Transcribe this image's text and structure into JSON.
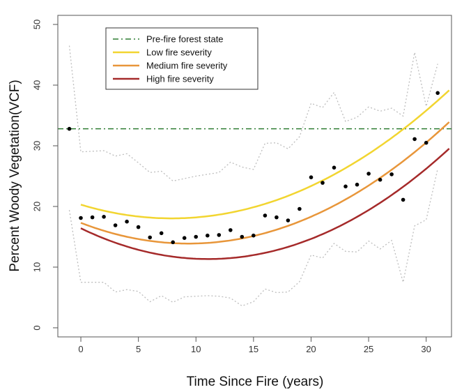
{
  "chart_data": {
    "type": "scatter",
    "title": "",
    "xlabel": "Time Since Fire (years)",
    "ylabel": "Percent Woody Vegetation(VCF)",
    "xlim": [
      -2,
      32.2
    ],
    "ylim": [
      -1.5,
      51.5
    ],
    "xticks": [
      0,
      5,
      10,
      15,
      20,
      25,
      30
    ],
    "yticks": [
      0,
      10,
      20,
      30,
      40,
      50
    ],
    "grid": false,
    "legend_position": "top-left",
    "reference_line": {
      "name": "Pre-fire forest state",
      "y": 32.8,
      "color": "#2e7d32",
      "style": "dash-dot"
    },
    "points": [
      {
        "x": -1,
        "y": 32.8
      },
      {
        "x": 0,
        "y": 18.1
      },
      {
        "x": 1,
        "y": 18.2
      },
      {
        "x": 2,
        "y": 18.3
      },
      {
        "x": 3,
        "y": 16.9
      },
      {
        "x": 4,
        "y": 17.5
      },
      {
        "x": 5,
        "y": 16.6
      },
      {
        "x": 6,
        "y": 14.9
      },
      {
        "x": 7,
        "y": 15.6
      },
      {
        "x": 8,
        "y": 14.1
      },
      {
        "x": 9,
        "y": 14.8
      },
      {
        "x": 10,
        "y": 15.0
      },
      {
        "x": 11,
        "y": 15.2
      },
      {
        "x": 12,
        "y": 15.3
      },
      {
        "x": 13,
        "y": 16.1
      },
      {
        "x": 14,
        "y": 15.0
      },
      {
        "x": 15,
        "y": 15.2
      },
      {
        "x": 16,
        "y": 18.5
      },
      {
        "x": 17,
        "y": 18.2
      },
      {
        "x": 18,
        "y": 17.7
      },
      {
        "x": 19,
        "y": 19.6
      },
      {
        "x": 20,
        "y": 24.8
      },
      {
        "x": 21,
        "y": 23.9
      },
      {
        "x": 22,
        "y": 26.4
      },
      {
        "x": 23,
        "y": 23.3
      },
      {
        "x": 24,
        "y": 23.6
      },
      {
        "x": 25,
        "y": 25.4
      },
      {
        "x": 26,
        "y": 24.4
      },
      {
        "x": 27,
        "y": 25.3
      },
      {
        "x": 28,
        "y": 21.1
      },
      {
        "x": 29,
        "y": 31.1
      },
      {
        "x": 30,
        "y": 30.5
      },
      {
        "x": 31,
        "y": 38.7
      }
    ],
    "confidence_band": {
      "color": "#bdbdbd",
      "upper": [
        {
          "x": -1,
          "y": 46.5
        },
        {
          "x": 0,
          "y": 29.0
        },
        {
          "x": 2,
          "y": 29.2
        },
        {
          "x": 3,
          "y": 28.3
        },
        {
          "x": 4,
          "y": 28.7
        },
        {
          "x": 5,
          "y": 27.2
        },
        {
          "x": 6,
          "y": 25.6
        },
        {
          "x": 7,
          "y": 25.8
        },
        {
          "x": 8,
          "y": 24.2
        },
        {
          "x": 10,
          "y": 25.0
        },
        {
          "x": 12,
          "y": 25.6
        },
        {
          "x": 13,
          "y": 27.3
        },
        {
          "x": 14,
          "y": 26.5
        },
        {
          "x": 15,
          "y": 26.1
        },
        {
          "x": 16,
          "y": 30.4
        },
        {
          "x": 17,
          "y": 30.5
        },
        {
          "x": 18,
          "y": 29.5
        },
        {
          "x": 19,
          "y": 31.5
        },
        {
          "x": 20,
          "y": 37.0
        },
        {
          "x": 21,
          "y": 36.3
        },
        {
          "x": 22,
          "y": 38.8
        },
        {
          "x": 23,
          "y": 34.0
        },
        {
          "x": 24,
          "y": 34.7
        },
        {
          "x": 25,
          "y": 36.4
        },
        {
          "x": 26,
          "y": 35.7
        },
        {
          "x": 27,
          "y": 36.2
        },
        {
          "x": 28,
          "y": 34.9
        },
        {
          "x": 29,
          "y": 45.4
        },
        {
          "x": 30,
          "y": 36.5
        },
        {
          "x": 31,
          "y": 43.5
        }
      ],
      "lower": [
        {
          "x": -1,
          "y": 19.4
        },
        {
          "x": 0,
          "y": 7.5
        },
        {
          "x": 2,
          "y": 7.5
        },
        {
          "x": 3,
          "y": 5.9
        },
        {
          "x": 4,
          "y": 6.3
        },
        {
          "x": 5,
          "y": 6.0
        },
        {
          "x": 6,
          "y": 4.3
        },
        {
          "x": 7,
          "y": 5.3
        },
        {
          "x": 8,
          "y": 4.2
        },
        {
          "x": 9,
          "y": 5.1
        },
        {
          "x": 11,
          "y": 5.3
        },
        {
          "x": 12,
          "y": 5.2
        },
        {
          "x": 13,
          "y": 4.9
        },
        {
          "x": 14,
          "y": 3.6
        },
        {
          "x": 15,
          "y": 4.3
        },
        {
          "x": 16,
          "y": 6.4
        },
        {
          "x": 17,
          "y": 5.8
        },
        {
          "x": 18,
          "y": 5.9
        },
        {
          "x": 19,
          "y": 7.6
        },
        {
          "x": 20,
          "y": 12.0
        },
        {
          "x": 21,
          "y": 11.5
        },
        {
          "x": 22,
          "y": 13.9
        },
        {
          "x": 23,
          "y": 12.6
        },
        {
          "x": 24,
          "y": 12.5
        },
        {
          "x": 25,
          "y": 14.3
        },
        {
          "x": 26,
          "y": 13.0
        },
        {
          "x": 27,
          "y": 14.4
        },
        {
          "x": 28,
          "y": 7.5
        },
        {
          "x": 29,
          "y": 16.8
        },
        {
          "x": 30,
          "y": 17.8
        },
        {
          "x": 31,
          "y": 26.2
        }
      ]
    },
    "curves": [
      {
        "name": "Low fire severity",
        "color": "#f2d530",
        "c0": 20.3,
        "c1": -0.5737,
        "c2": 0.03634
      },
      {
        "name": "Medium fire severity",
        "color": "#e8963a",
        "c0": 17.3,
        "c1": -0.7304,
        "c2": 0.03905
      },
      {
        "name": "High fire severity",
        "color": "#a52a2a",
        "c0": 16.4,
        "c1": -0.9167,
        "c2": 0.04147
      }
    ]
  }
}
